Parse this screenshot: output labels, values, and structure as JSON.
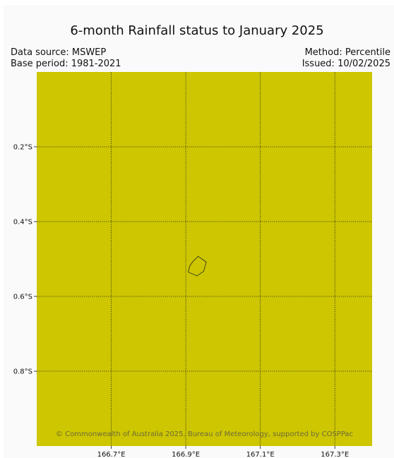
{
  "header": {
    "title": "6-month Rainfall status to January 2025",
    "data_source": "Data source: MSWEP",
    "base_period": "Base period: 1981-2021",
    "method": "Method: Percentile",
    "issued": "Issued: 10/02/2025"
  },
  "map": {
    "fill_color": "#cdc600",
    "grid_color": "#222222",
    "extent": {
      "lon": [
        166.5,
        167.4
      ],
      "lat": [
        0.0,
        -1.0
      ]
    },
    "lat_ticks": [
      {
        "value": -0.2,
        "label": "0.2°S"
      },
      {
        "value": -0.4,
        "label": "0.4°S"
      },
      {
        "value": -0.6,
        "label": "0.6°S"
      },
      {
        "value": -0.8,
        "label": "0.8°S"
      }
    ],
    "lon_ticks": [
      {
        "value": 166.7,
        "label": "166.7°E"
      },
      {
        "value": 166.9,
        "label": "166.9°E"
      },
      {
        "value": 167.1,
        "label": "167.1°E"
      },
      {
        "value": 167.3,
        "label": "167.3°E"
      }
    ],
    "island_outline": [
      [
        166.933,
        -0.493
      ],
      [
        166.955,
        -0.508
      ],
      [
        166.948,
        -0.533
      ],
      [
        166.93,
        -0.545
      ],
      [
        166.907,
        -0.535
      ],
      [
        166.91,
        -0.52
      ],
      [
        166.918,
        -0.508
      ]
    ],
    "credit": "© Commonwealth of Australia 2025, Bureau of Meteorology, supported by COSPPac"
  }
}
